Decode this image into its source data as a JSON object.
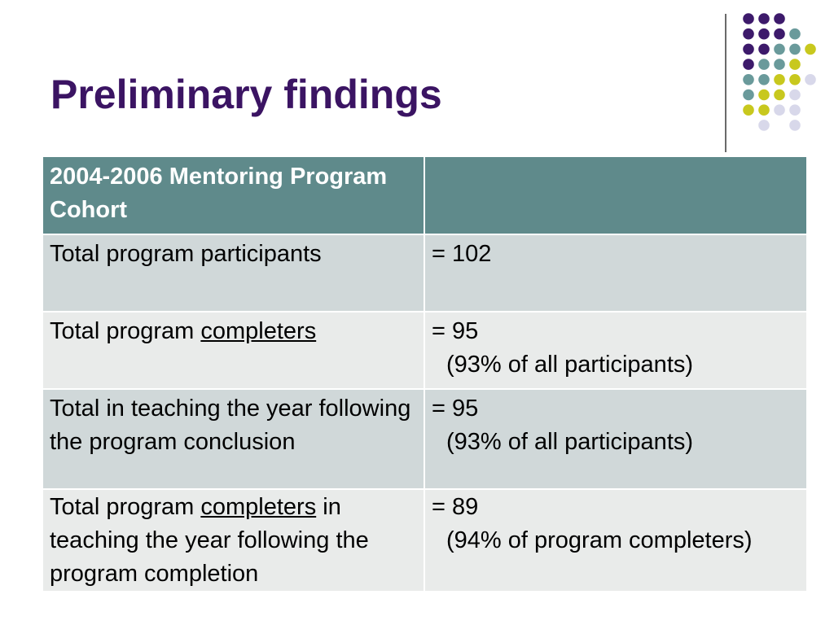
{
  "slide": {
    "title": "Preliminary findings"
  },
  "decoration": {
    "colors": {
      "purple": "#3d1a6b",
      "teal": "#6a9a9b",
      "olive": "#c8c81e",
      "lavender": "#d8d8ea"
    }
  },
  "table": {
    "header": {
      "col1": "2004-2006 Mentoring Program Cohort",
      "col2": ""
    },
    "rows": [
      {
        "label_before": "Total program participants",
        "label_underlined": "",
        "label_after": "",
        "value": "= 102",
        "note": ""
      },
      {
        "label_before": "Total program ",
        "label_underlined": "completers",
        "label_after": "",
        "value": "= 95",
        "note": "(93% of all participants)"
      },
      {
        "label_before": "Total in teaching the year following the program conclusion",
        "label_underlined": "",
        "label_after": "",
        "value": "= 95",
        "note": "(93% of all participants)"
      },
      {
        "label_before": "Total program ",
        "label_underlined": "completers",
        "label_after": " in teaching the year following the program completion",
        "value": "= 89",
        "note": "(94% of program completers)"
      }
    ]
  }
}
